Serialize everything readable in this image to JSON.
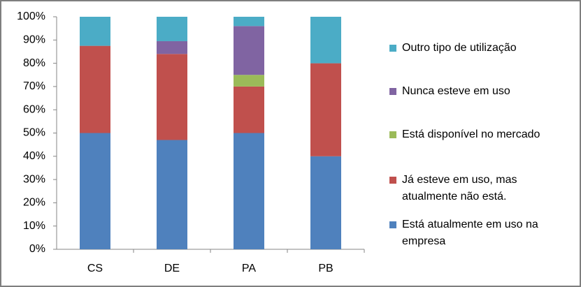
{
  "chart_data": {
    "type": "stacked-bar",
    "categories": [
      "CS",
      "DE",
      "PA",
      "PB"
    ],
    "series": [
      {
        "name": "Está atualmente em uso na empresa",
        "color": "#4f81bd",
        "values": [
          50,
          47,
          50,
          40
        ]
      },
      {
        "name": "Já esteve em uso, mas atualmente não está.",
        "color": "#c0504d",
        "values": [
          37.5,
          37,
          20,
          40
        ]
      },
      {
        "name": "Está disponível no mercado",
        "color": "#9bbb59",
        "values": [
          0,
          0,
          5,
          0
        ]
      },
      {
        "name": "Nunca esteve em uso",
        "color": "#8064a2",
        "values": [
          0,
          5.5,
          21,
          0
        ]
      },
      {
        "name": "Outro tipo de utilização",
        "color": "#4bacc6",
        "values": [
          12.5,
          10.5,
          4,
          20
        ]
      }
    ],
    "ylim": [
      0,
      100
    ],
    "yticks": [
      {
        "value": 0,
        "label": "0%"
      },
      {
        "value": 10,
        "label": "10%"
      },
      {
        "value": 20,
        "label": "20%"
      },
      {
        "value": 30,
        "label": "30%"
      },
      {
        "value": 40,
        "label": "40%"
      },
      {
        "value": 50,
        "label": "50%"
      },
      {
        "value": 60,
        "label": "60%"
      },
      {
        "value": 70,
        "label": "70%"
      },
      {
        "value": 80,
        "label": "80%"
      },
      {
        "value": 90,
        "label": "90%"
      },
      {
        "value": 100,
        "label": "100%"
      }
    ],
    "legend": "right"
  }
}
